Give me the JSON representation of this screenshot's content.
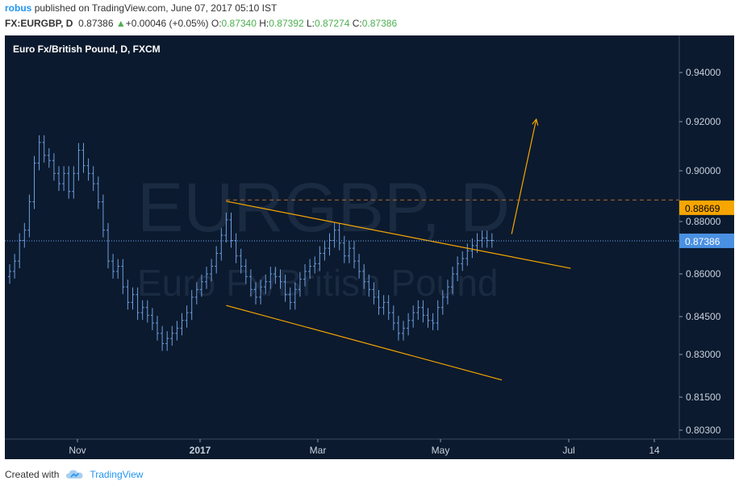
{
  "header": {
    "user": "robus",
    "published_text": "published on TradingView.com, June 07, 2017 05:10 IST",
    "symbol_line_prefix": "FX:EURGBP, D",
    "last_price": "0.87386",
    "change_text": "+0.00046 (+0.05%)",
    "open_label": "O:",
    "open_value": "0.87340",
    "high_label": "H:",
    "high_value": "0.87392",
    "low_label": "L:",
    "low_value": "0.87274",
    "close_label": "C:",
    "close_value": "0.87386"
  },
  "chart_data": {
    "type": "candlestick",
    "title": "Euro Fx/British Pound, D, FXCM",
    "watermark_symbol": "EURGBP, D",
    "watermark_name": "Euro Fx/British Pound",
    "x_ticks": [
      "Nov",
      "2017",
      "Mar",
      "May",
      "Jul",
      "14"
    ],
    "y_ticks": [
      "0.94000",
      "0.92000",
      "0.90000",
      "0.88000",
      "0.86000",
      "0.84500",
      "0.83000",
      "0.81500",
      "0.80300"
    ],
    "ylim": [
      0.797,
      0.9535
    ],
    "last_price_label": "0.87386",
    "last_price": 0.87386,
    "target_label": "0.88669",
    "target_price": 0.88669,
    "dashed_level": 0.8897,
    "series": [
      {
        "name": "EURGBP",
        "close": [
          0.862,
          0.866,
          0.874,
          0.878,
          0.889,
          0.904,
          0.912,
          0.907,
          0.905,
          0.9,
          0.896,
          0.9,
          0.893,
          0.9,
          0.909,
          0.903,
          0.9,
          0.896,
          0.889,
          0.878,
          0.866,
          0.862,
          0.864,
          0.856,
          0.85,
          0.853,
          0.846,
          0.848,
          0.845,
          0.842,
          0.838,
          0.834,
          0.836,
          0.838,
          0.84,
          0.843,
          0.846,
          0.852,
          0.855,
          0.858,
          0.861,
          0.864,
          0.869,
          0.876,
          0.882,
          0.874,
          0.868,
          0.864,
          0.86,
          0.855,
          0.852,
          0.856,
          0.858,
          0.861,
          0.86,
          0.858,
          0.853,
          0.85,
          0.855,
          0.859,
          0.862,
          0.864,
          0.865,
          0.869,
          0.871,
          0.874,
          0.878,
          0.873,
          0.868,
          0.871,
          0.866,
          0.862,
          0.858,
          0.855,
          0.852,
          0.848,
          0.85,
          0.846,
          0.842,
          0.838,
          0.84,
          0.843,
          0.846,
          0.848,
          0.845,
          0.843,
          0.842,
          0.848,
          0.852,
          0.856,
          0.861,
          0.865,
          0.867,
          0.87,
          0.872,
          0.874,
          0.875,
          0.874,
          0.874
        ]
      }
    ],
    "trendlines": [
      {
        "name": "channel-upper",
        "from_index": 44,
        "from_price": 0.8892,
        "to_index": 114,
        "to_price": 0.8632,
        "color": "#f7a600"
      },
      {
        "name": "channel-lower",
        "from_index": 44,
        "from_price": 0.8488,
        "to_index": 100,
        "to_price": 0.8199,
        "color": "#f7a600"
      },
      {
        "name": "projection-arrow",
        "from_index": 102,
        "from_price": 0.8765,
        "to_index": 107,
        "to_price": 0.921,
        "color": "#f7a600"
      }
    ]
  },
  "footer": {
    "created_with": "Created with",
    "brand": "TradingView"
  },
  "colors": {
    "background": "#0b1a2e",
    "bar": "#6f9fe0",
    "trend": "#f7a600",
    "target_badge": "#f7a600",
    "price_badge": "#4a90e2"
  }
}
